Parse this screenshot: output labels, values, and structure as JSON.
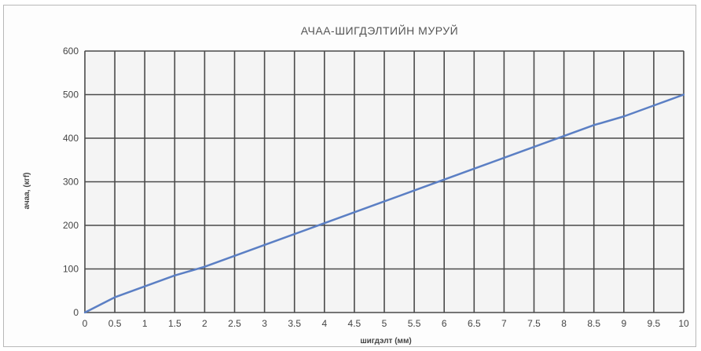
{
  "chart_data": {
    "type": "line",
    "title": "АЧАА-ШИГДЭЛТИЙН МУРУЙ",
    "xlabel": "шигдэлт (мм)",
    "ylabel": "ачаа, (кгf)",
    "xlim": [
      0,
      10
    ],
    "ylim": [
      0,
      600
    ],
    "x_ticks": [
      "0",
      "0.5",
      "1",
      "1.5",
      "2",
      "2.5",
      "3",
      "3.5",
      "4",
      "4.5",
      "5",
      "5.5",
      "6",
      "6.5",
      "7",
      "7.5",
      "8",
      "8.5",
      "9",
      "9.5",
      "10"
    ],
    "y_ticks": [
      "0",
      "100",
      "200",
      "300",
      "400",
      "500",
      "600"
    ],
    "grid": true,
    "series": [
      {
        "x": [
          0,
          0.5,
          1,
          1.5,
          2,
          2.5,
          3,
          3.5,
          4,
          4.5,
          5,
          5.5,
          6,
          6.5,
          7,
          7.5,
          8,
          8.5,
          9,
          9.5,
          10
        ],
        "values": [
          0,
          35,
          60,
          85,
          105,
          130,
          155,
          180,
          205,
          230,
          255,
          280,
          305,
          330,
          355,
          380,
          405,
          430,
          450,
          475,
          500
        ],
        "color": "#5b7fc4"
      }
    ]
  }
}
